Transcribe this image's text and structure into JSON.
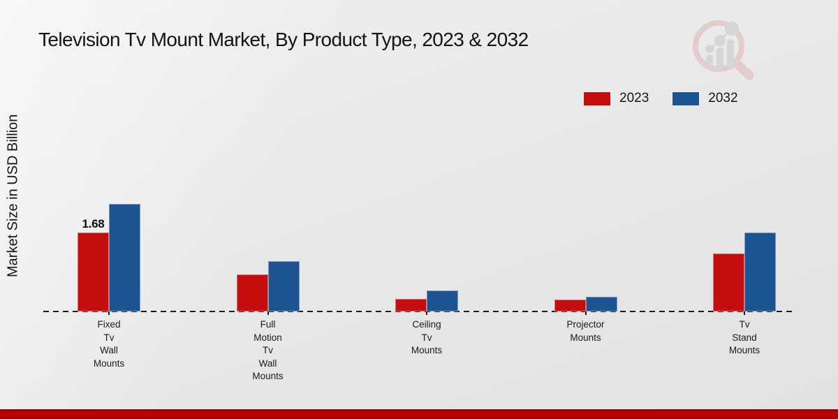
{
  "title": "Television Tv Mount Market, By Product Type, 2023 & 2032",
  "y_axis_label": "Market Size in USD Billion",
  "legend": {
    "items": [
      {
        "label": "2023",
        "color": "#c60d0d"
      },
      {
        "label": "2032",
        "color": "#1b5490"
      }
    ]
  },
  "chart_data": {
    "type": "bar",
    "title": "Television Tv Mount Market, By Product Type, 2023 & 2032",
    "xlabel": "",
    "ylabel": "Market Size in USD Billion",
    "categories": [
      "Fixed Tv Wall Mounts",
      "Full Motion Tv Wall Mounts",
      "Ceiling Tv Mounts",
      "Projector Mounts",
      "Tv Stand Mounts"
    ],
    "categories_multiline": [
      [
        "Fixed",
        "Tv",
        "Wall",
        "Mounts"
      ],
      [
        "Full",
        "Motion",
        "Tv",
        "Wall",
        "Mounts"
      ],
      [
        "Ceiling",
        "Tv",
        "Mounts"
      ],
      [
        "Projector",
        "Mounts"
      ],
      [
        "Tv",
        "Stand",
        "Mounts"
      ]
    ],
    "series": [
      {
        "name": "2023",
        "color": "#c60d0d",
        "values": [
          1.68,
          0.79,
          0.27,
          0.25,
          1.23
        ]
      },
      {
        "name": "2032",
        "color": "#1b5490",
        "values": [
          2.29,
          1.07,
          0.45,
          0.31,
          1.68
        ]
      }
    ],
    "annotations": [
      {
        "series": "2023",
        "category_index": 0,
        "text": "1.68"
      }
    ],
    "ylim": [
      0,
      2.6
    ],
    "grid": false,
    "legend_position": "top-right",
    "zero_line_style": "dashed"
  },
  "watermark": {
    "name": "market-research-magnifier-logo"
  },
  "colors": {
    "background": "#e9e9e9",
    "bottom_stripe": "#b50404",
    "baseline": "#1c1c1c",
    "text": "#141414"
  }
}
